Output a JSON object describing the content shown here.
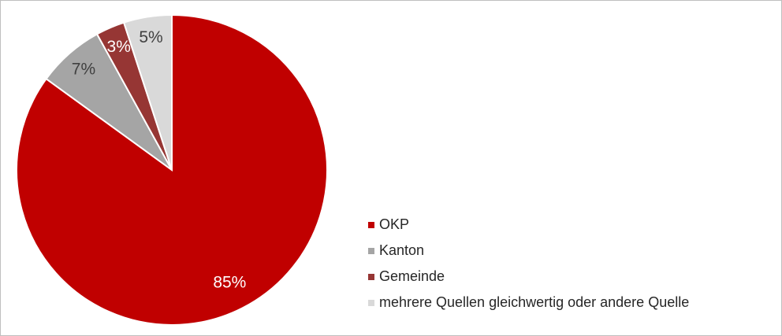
{
  "chart_data": {
    "type": "pie",
    "categories": [
      "OKP",
      "Kanton",
      "Gemeinde",
      "mehrere Quellen gleichwertig oder andere Quelle"
    ],
    "values": [
      85,
      7,
      3,
      5
    ],
    "value_labels": [
      "85%",
      "7%",
      "3%",
      "5%"
    ],
    "colors": [
      "#c00000",
      "#a5a5a5",
      "#963634",
      "#d9d9d9"
    ],
    "legend": "right"
  }
}
